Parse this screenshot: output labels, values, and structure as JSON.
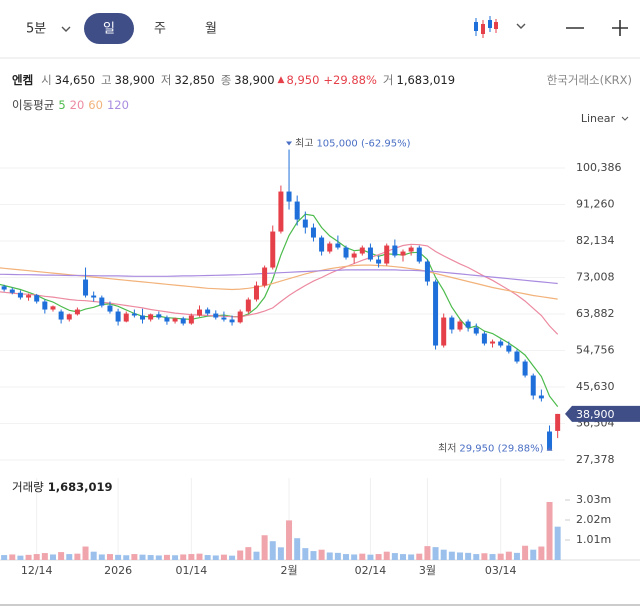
{
  "toolbar": {
    "interval": "5분",
    "tabs": [
      "일",
      "주",
      "월"
    ]
  },
  "header": {
    "name": "엔켐",
    "items": [
      {
        "label": "시",
        "value": "34,650"
      },
      {
        "label": "고",
        "value": "38,900"
      },
      {
        "label": "저",
        "value": "32,850"
      },
      {
        "label": "종",
        "value": "38,900"
      },
      {
        "label": "거",
        "value": "1,683,019"
      }
    ],
    "change_arrow": "▲",
    "change": "8,950",
    "change_pct": "+29.88%",
    "exchange": "한국거래소(KRX)"
  },
  "ma_legend": "이동평균",
  "scale_mode": "Linear",
  "chart_data": {
    "type": "candlestick",
    "categories": [
      null,
      null,
      null,
      null,
      null,
      "12/14",
      null,
      null,
      null,
      null,
      null,
      null,
      null,
      null,
      null,
      "2026",
      null,
      null,
      null,
      null,
      null,
      null,
      null,
      null,
      "01/14",
      null,
      null,
      null,
      null,
      null,
      null,
      null,
      null,
      null,
      null,
      null,
      "2월",
      null,
      null,
      null,
      null,
      null,
      null,
      null,
      null,
      null,
      "02/14",
      null,
      null,
      null,
      null,
      null,
      null,
      "3월",
      null,
      null,
      null,
      null,
      null,
      null,
      null,
      null,
      "03/14",
      null,
      null,
      null,
      null,
      null,
      null,
      null
    ],
    "open": [
      71500,
      70800,
      70000,
      69200,
      68000,
      68600,
      67000,
      65000,
      64500,
      62500,
      63800,
      72500,
      68500,
      68000,
      66000,
      64500,
      62000,
      64000,
      63500,
      62500,
      63800,
      63000,
      62000,
      62800,
      61500,
      63500,
      65000,
      64000,
      63000,
      62500,
      61800,
      64500,
      67500,
      71000,
      75500,
      84500,
      94500,
      92000,
      87500,
      85500,
      83000,
      79500,
      81500,
      80500,
      78000,
      79000,
      80500,
      77500,
      76500,
      81000,
      78500,
      79500,
      80500,
      77000,
      72000,
      56000,
      63000,
      60000,
      62000,
      60500,
      59000,
      56500,
      57000,
      56000,
      54500,
      52000,
      48500,
      43500,
      34500,
      34650
    ],
    "high": [
      72000,
      71200,
      70500,
      69800,
      69000,
      68900,
      67500,
      66000,
      65000,
      64000,
      65500,
      75500,
      69500,
      68500,
      67000,
      65200,
      64500,
      65000,
      65200,
      64000,
      64500,
      63500,
      63000,
      63200,
      64000,
      66000,
      65500,
      64800,
      64500,
      63500,
      65000,
      68000,
      72000,
      76000,
      86000,
      96000,
      105000,
      93500,
      89500,
      86500,
      83500,
      82000,
      83500,
      81000,
      79500,
      81000,
      81500,
      78500,
      81500,
      82500,
      80000,
      81000,
      81000,
      77500,
      72500,
      64000,
      63500,
      62500,
      62500,
      61500,
      59500,
      57500,
      57500,
      57000,
      55000,
      52500,
      49000,
      45000,
      36000,
      38900
    ],
    "low": [
      70200,
      69500,
      68800,
      67500,
      67200,
      66500,
      64000,
      64500,
      61500,
      62000,
      63500,
      68000,
      67000,
      65500,
      64000,
      61000,
      61800,
      63000,
      61500,
      62000,
      62500,
      61200,
      61500,
      61000,
      61200,
      63200,
      63500,
      62500,
      62000,
      61000,
      61500,
      64000,
      67000,
      70500,
      75000,
      84000,
      90000,
      86000,
      84000,
      82000,
      78500,
      79000,
      80000,
      77500,
      76500,
      78500,
      77000,
      75500,
      76000,
      78000,
      77000,
      78500,
      76500,
      71000,
      55000,
      55500,
      59000,
      59500,
      59500,
      58500,
      56000,
      55500,
      55500,
      54000,
      51500,
      48000,
      42500,
      42000,
      29950,
      32850
    ],
    "close": [
      70800,
      70000,
      69200,
      68000,
      68600,
      67000,
      65000,
      65800,
      62500,
      63800,
      65000,
      68500,
      68000,
      66000,
      64500,
      62000,
      64000,
      63500,
      62500,
      63800,
      63000,
      62000,
      62800,
      61500,
      63500,
      65000,
      64000,
      63000,
      62500,
      61800,
      64500,
      67500,
      71000,
      75500,
      84500,
      94500,
      92000,
      87500,
      85500,
      83000,
      79500,
      81500,
      80500,
      78000,
      79000,
      80500,
      77500,
      76500,
      81000,
      78500,
      79500,
      80500,
      77000,
      72000,
      56000,
      63000,
      60000,
      62000,
      60500,
      59000,
      56500,
      57000,
      56000,
      54500,
      52000,
      48500,
      43500,
      42780,
      29950,
      38900
    ],
    "volume": [
      300000,
      250000,
      280000,
      220000,
      260000,
      300000,
      350000,
      280000,
      400000,
      300000,
      320000,
      680000,
      420000,
      280000,
      300000,
      260000,
      240000,
      300000,
      270000,
      250000,
      230000,
      260000,
      240000,
      280000,
      300000,
      320000,
      250000,
      230000,
      270000,
      220000,
      480000,
      650000,
      420000,
      1250000,
      950000,
      640000,
      2000000,
      1100000,
      600000,
      450000,
      520000,
      380000,
      360000,
      300000,
      280000,
      320000,
      270000,
      300000,
      420000,
      350000,
      300000,
      280000,
      320000,
      700000,
      650000,
      520000,
      420000,
      380000,
      360000,
      300000,
      340000,
      300000,
      320000,
      420000,
      360000,
      720000,
      520000,
      680000,
      2930000,
      1683019
    ],
    "up_color": "#e5404a",
    "down_color": "#1e6fd9",
    "volume_up_color": "#f0a4ab",
    "volume_down_color": "#9cc0ec",
    "series": [
      {
        "name": "5",
        "color": "#4cbb4c",
        "values": [
          71500,
          71000,
          70500,
          70000,
          69320,
          68560,
          67560,
          66880,
          65780,
          64820,
          64420,
          65120,
          65560,
          66260,
          66400,
          65800,
          64900,
          64000,
          63300,
          63160,
          63360,
          62960,
          62820,
          62620,
          62560,
          62960,
          63360,
          63400,
          63600,
          63260,
          63160,
          63860,
          65460,
          68060,
          72600,
          78600,
          83500,
          86800,
          88800,
          88500,
          85500,
          83400,
          82000,
          80500,
          79700,
          79900,
          79100,
          78300,
          78900,
          78800,
          78600,
          79200,
          79300,
          77500,
          73000,
          69700,
          65600,
          62600,
          60300,
          60900,
          59600,
          59000,
          57800,
          56600,
          55200,
          53600,
          50900,
          48260,
          43350,
          40730
        ]
      },
      {
        "name": "20",
        "color": "#ec8aa0",
        "values": [
          69500,
          69300,
          69100,
          68900,
          68800,
          68600,
          68300,
          68100,
          67800,
          67500,
          67300,
          67200,
          67000,
          66800,
          66600,
          66300,
          66000,
          65700,
          65400,
          65000,
          64700,
          64400,
          64100,
          63900,
          63700,
          63600,
          63500,
          63400,
          63300,
          63200,
          63100,
          63600,
          64000,
          64600,
          65400,
          67000,
          68500,
          69800,
          71000,
          72100,
          73000,
          74000,
          74900,
          75700,
          76500,
          77300,
          78000,
          78700,
          79500,
          80300,
          81000,
          81300,
          81200,
          80900,
          79500,
          78400,
          77400,
          76400,
          75500,
          74400,
          73300,
          72300,
          71100,
          69900,
          68600,
          67100,
          65300,
          63500,
          60900,
          58800
        ]
      },
      {
        "name": "60",
        "color": "#f2b27a",
        "values": [
          75500,
          75300,
          75100,
          74900,
          74700,
          74500,
          74300,
          74100,
          73900,
          73700,
          73500,
          73300,
          73100,
          72900,
          72700,
          72500,
          72300,
          72100,
          71900,
          71700,
          71500,
          71300,
          71100,
          70900,
          70700,
          70500,
          70300,
          70200,
          70100,
          70000,
          70100,
          70300,
          70600,
          71000,
          71500,
          72100,
          72700,
          73300,
          73900,
          74400,
          74800,
          75200,
          75500,
          75800,
          76000,
          76100,
          76100,
          76000,
          75900,
          75700,
          75500,
          75200,
          74900,
          74500,
          74000,
          73500,
          73000,
          72500,
          72000,
          71500,
          71000,
          70500,
          70100,
          69700,
          69300,
          68900,
          68500,
          68200,
          67900,
          67600
        ]
      },
      {
        "name": "120",
        "color": "#a98be0",
        "values": [
          73800,
          73800,
          73750,
          73700,
          73700,
          73650,
          73600,
          73600,
          73550,
          73500,
          73500,
          73500,
          73450,
          73400,
          73400,
          73400,
          73350,
          73300,
          73300,
          73300,
          73300,
          73300,
          73350,
          73400,
          73400,
          73450,
          73500,
          73550,
          73600,
          73650,
          73700,
          73800,
          73900,
          74000,
          74100,
          74200,
          74300,
          74400,
          74500,
          74600,
          74700,
          74800,
          74800,
          74900,
          74900,
          74900,
          74900,
          74900,
          74900,
          74900,
          74800,
          74800,
          74700,
          74600,
          74500,
          74300,
          74100,
          73900,
          73700,
          73500,
          73300,
          73100,
          72900,
          72700,
          72500,
          72300,
          72100,
          71900,
          71700,
          71500
        ]
      }
    ],
    "ylim": [
      24878,
      109888
    ],
    "yticks": [
      {
        "value": 27378,
        "label": "27,378"
      },
      {
        "value": 36504,
        "label": "36,504"
      },
      {
        "value": 45630,
        "label": "45,630"
      },
      {
        "value": 54756,
        "label": "54,756"
      },
      {
        "value": 63882,
        "label": "63,882"
      },
      {
        "value": 73008,
        "label": "73,008"
      },
      {
        "value": 82134,
        "label": "82,134"
      },
      {
        "value": 91260,
        "label": "91,260"
      },
      {
        "value": 100386,
        "label": "100,386"
      }
    ],
    "vlim": [
      0,
      4140000
    ],
    "vticks": [
      {
        "value": 1010000,
        "label": "1.01m"
      },
      {
        "value": 2020000,
        "label": "2.02m"
      },
      {
        "value": 3030000,
        "label": "3.03m"
      }
    ],
    "grid": true,
    "annotations": [
      {
        "value": 105000,
        "prefix": "최고",
        "label": "105,000 (-62.95%)"
      },
      {
        "value": 29950,
        "prefix": "최저",
        "label": "29,950 (29.88%)"
      }
    ],
    "last_price": {
      "value": 38900,
      "label": "38,900"
    },
    "volume_title": "거래량",
    "volume_last_label": "1,683,019"
  }
}
